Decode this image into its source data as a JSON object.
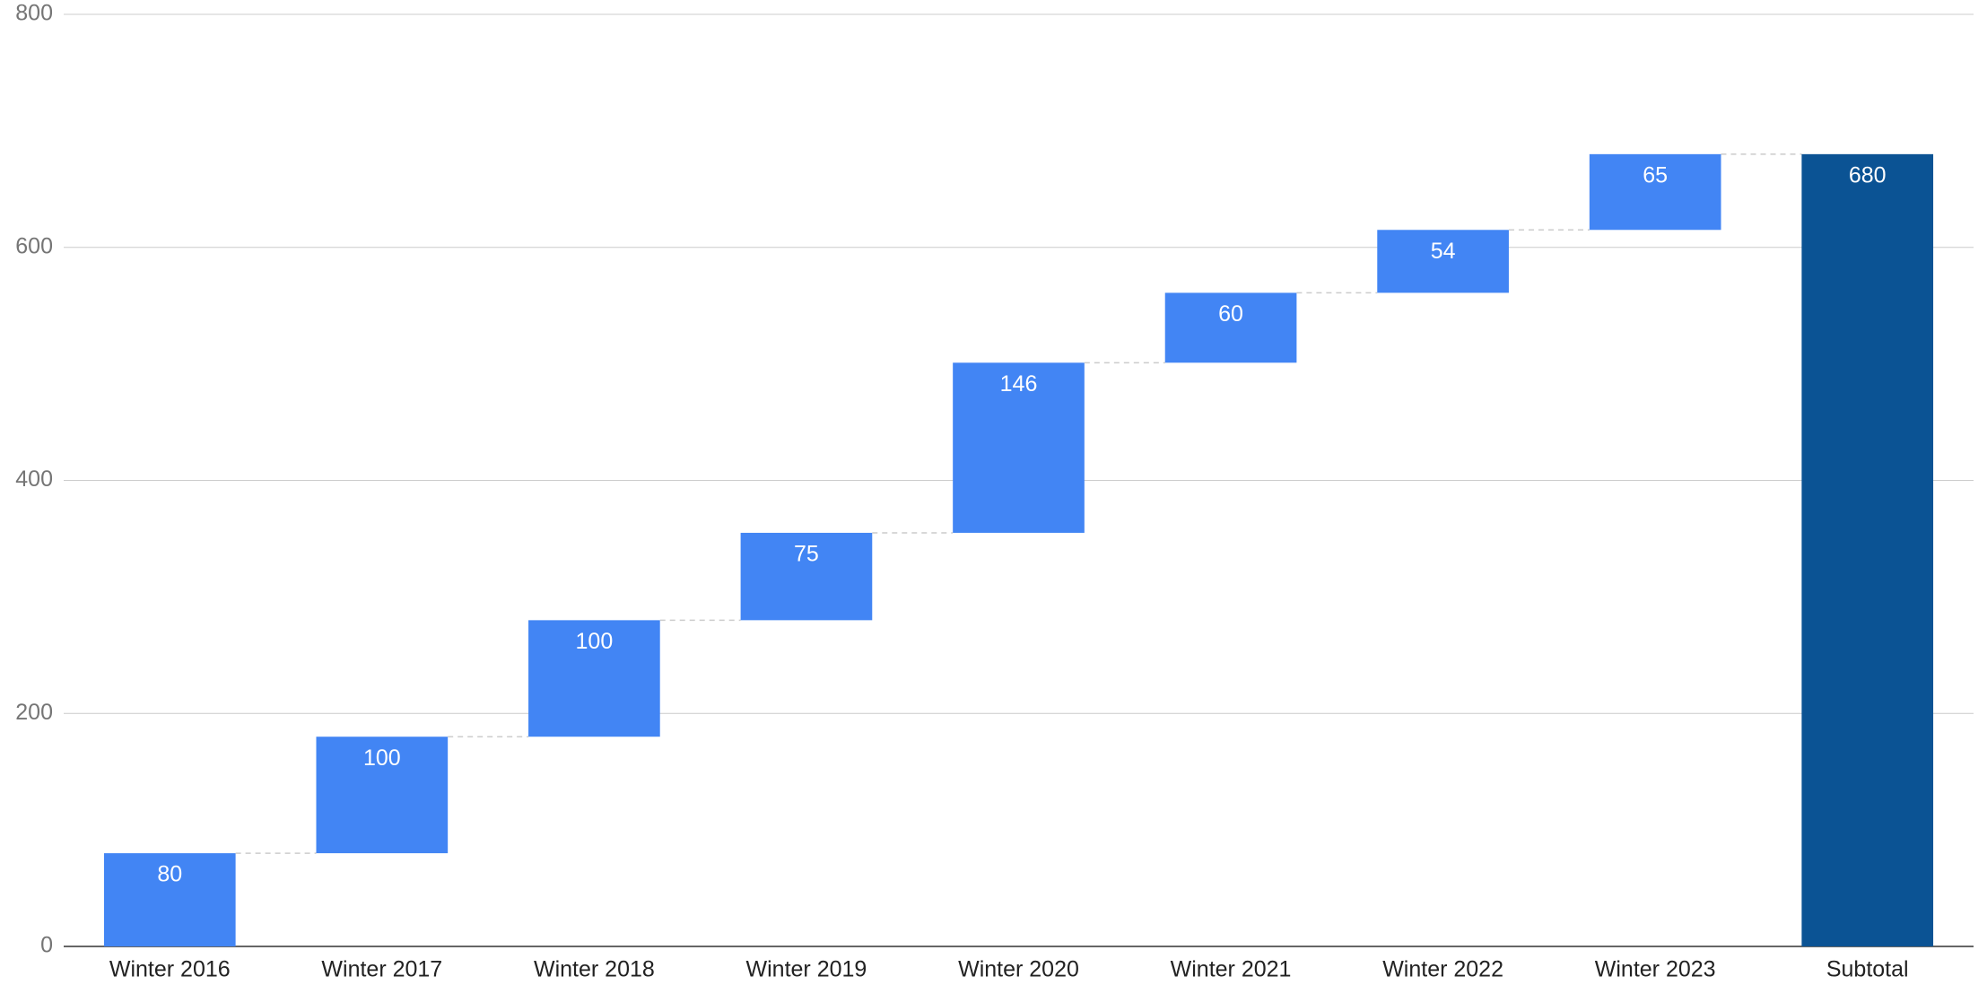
{
  "chart_data": {
    "type": "waterfall",
    "categories": [
      "Winter 2016",
      "Winter 2017",
      "Winter 2018",
      "Winter 2019",
      "Winter 2020",
      "Winter 2021",
      "Winter 2022",
      "Winter 2023",
      "Subtotal"
    ],
    "values": [
      80,
      100,
      100,
      75,
      146,
      60,
      54,
      65,
      680
    ],
    "totals": [
      false,
      false,
      false,
      false,
      false,
      false,
      false,
      false,
      true
    ],
    "increase_color": "#4285f4",
    "total_color": "#0b5394",
    "ylim": [
      0,
      800
    ],
    "yticks": [
      0,
      200,
      400,
      600,
      800
    ],
    "grid": true
  }
}
